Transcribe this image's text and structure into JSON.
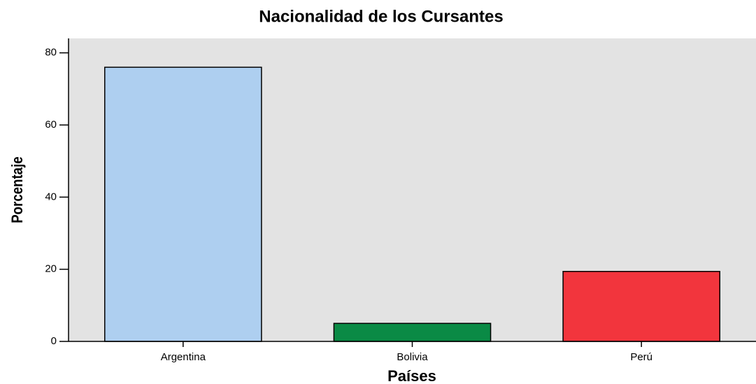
{
  "chart_data": {
    "type": "bar",
    "title": "Nacionalidad de los Cursantes",
    "x_label": "Países",
    "y_label": "Porcentaje",
    "categories": [
      "Argentina",
      "Bolivia",
      "Perú"
    ],
    "values": [
      76,
      5,
      19.4
    ],
    "colors": [
      "#aecff0",
      "#0a8a45",
      "#f2353d"
    ],
    "ylim": [
      0,
      84
    ],
    "yticks": [
      0,
      20,
      40,
      60,
      80
    ],
    "grid": false
  }
}
